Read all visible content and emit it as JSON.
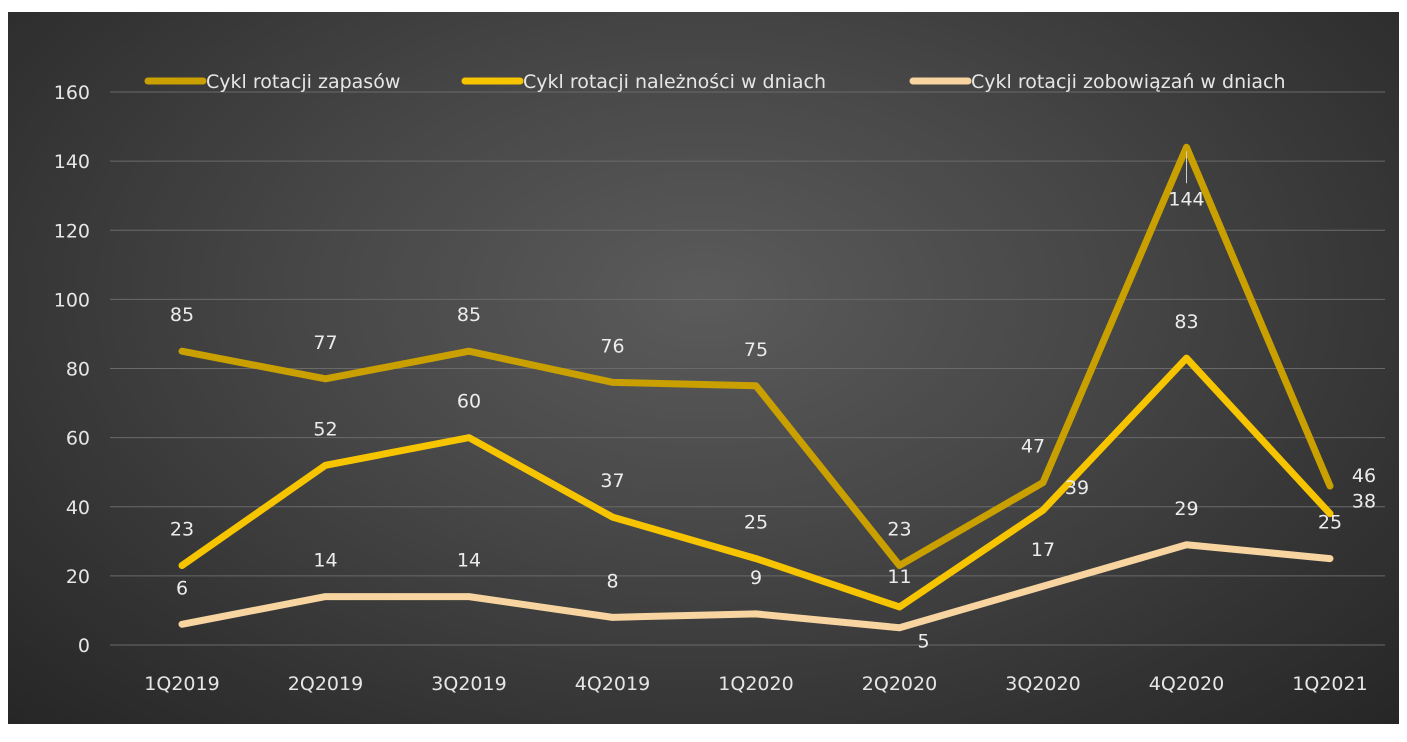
{
  "chart_data": {
    "type": "line",
    "categories": [
      "1Q2019",
      "2Q2019",
      "3Q2019",
      "4Q2019",
      "1Q2020",
      "2Q2020",
      "3Q2020",
      "4Q2020",
      "1Q2021"
    ],
    "series": [
      {
        "name": "Cykl rotacji zapasów",
        "values": [
          85,
          77,
          85,
          76,
          75,
          23,
          47,
          144,
          46
        ],
        "color": "#c9a000"
      },
      {
        "name": "Cykl rotacji należności w dniach",
        "values": [
          23,
          52,
          60,
          37,
          25,
          11,
          39,
          83,
          38
        ],
        "color": "#f7c500"
      },
      {
        "name": "Cykl rotacji zobowiązań w dniach",
        "values": [
          6,
          14,
          14,
          8,
          9,
          5,
          17,
          29,
          25
        ],
        "color": "#f7d4a0"
      }
    ],
    "title": "",
    "xlabel": "",
    "ylabel": "",
    "ylim": [
      0,
      160
    ],
    "yticks": [
      0,
      20,
      40,
      60,
      80,
      100,
      120,
      140,
      160
    ],
    "grid": true,
    "legend_position": "top",
    "background": "#3f3f3f"
  }
}
